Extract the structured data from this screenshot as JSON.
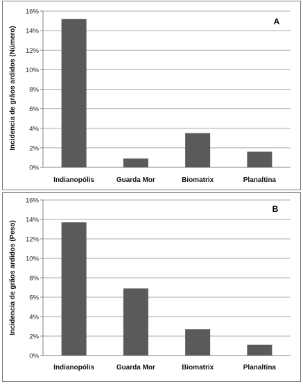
{
  "colors": {
    "bar": "#5a5a5a",
    "grid": "#a8a8a8",
    "axis": "#808080",
    "frame": "#7a7a7a"
  },
  "chart_data": [
    {
      "type": "bar",
      "panel_label": "A",
      "categories": [
        "Indianopólis",
        "Guarda Mor",
        "Biomatrix",
        "Planaltina"
      ],
      "values": [
        15.2,
        0.9,
        3.5,
        1.6
      ],
      "ylabel": "Incidencia de grãos ardidos (Número)",
      "xlabel": "",
      "ylim": [
        0,
        16
      ],
      "yticks": [
        "0%",
        "2%",
        "4%",
        "6%",
        "8%",
        "10%",
        "12%",
        "14%",
        "16%"
      ],
      "grid": true,
      "value_unit": "%"
    },
    {
      "type": "bar",
      "panel_label": "B",
      "categories": [
        "Indianopólis",
        "Guarda Mor",
        "Biomatrix",
        "Planaltina"
      ],
      "values": [
        13.7,
        6.9,
        2.7,
        1.1
      ],
      "ylabel": "Incidencia de grãos ardidos (Peso)",
      "xlabel": "",
      "ylim": [
        0,
        16
      ],
      "yticks": [
        "0%",
        "2%",
        "4%",
        "6%",
        "8%",
        "10%",
        "12%",
        "14%",
        "16%"
      ],
      "grid": true,
      "value_unit": "%"
    }
  ]
}
